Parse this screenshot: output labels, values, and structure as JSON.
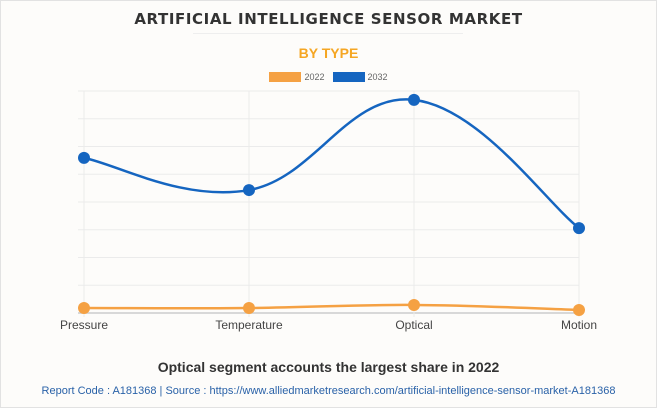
{
  "header": {
    "title": "ARTIFICIAL INTELLIGENCE SENSOR MARKET",
    "subtitle": "BY TYPE"
  },
  "footer": {
    "note": "Optical segment accounts the largest share in 2022",
    "source": "Report Code : A181368  |  Source : https://www.alliedmarketresearch.com/artificial-intelligence-sensor-market-A181368"
  },
  "colors": {
    "series_2022": "#f5a143",
    "series_2032": "#1565c0",
    "subtitle": "#f5a623",
    "grid": "#ebebeb"
  },
  "chart_data": {
    "type": "line",
    "title": "ARTIFICIAL INTELLIGENCE SENSOR MARKET",
    "subtitle": "BY TYPE",
    "xlabel": "",
    "ylabel": "",
    "categories": [
      "Pressure",
      "Temperature",
      "Optical",
      "Motion"
    ],
    "series": [
      {
        "name": "2022",
        "color": "#f5a143",
        "values": [
          0.18,
          0.18,
          0.29,
          0.11
        ]
      },
      {
        "name": "2032",
        "color": "#1565c0",
        "values": [
          5.59,
          4.43,
          7.68,
          3.06
        ]
      }
    ],
    "ylim": [
      0,
      8
    ],
    "y_gridlines": 8,
    "y_tick_labels_shown": false,
    "values_note": "No y-axis values printed; values are on a normalized scale of gridline units",
    "grid": true,
    "smooth": true,
    "legend": "top-center"
  }
}
